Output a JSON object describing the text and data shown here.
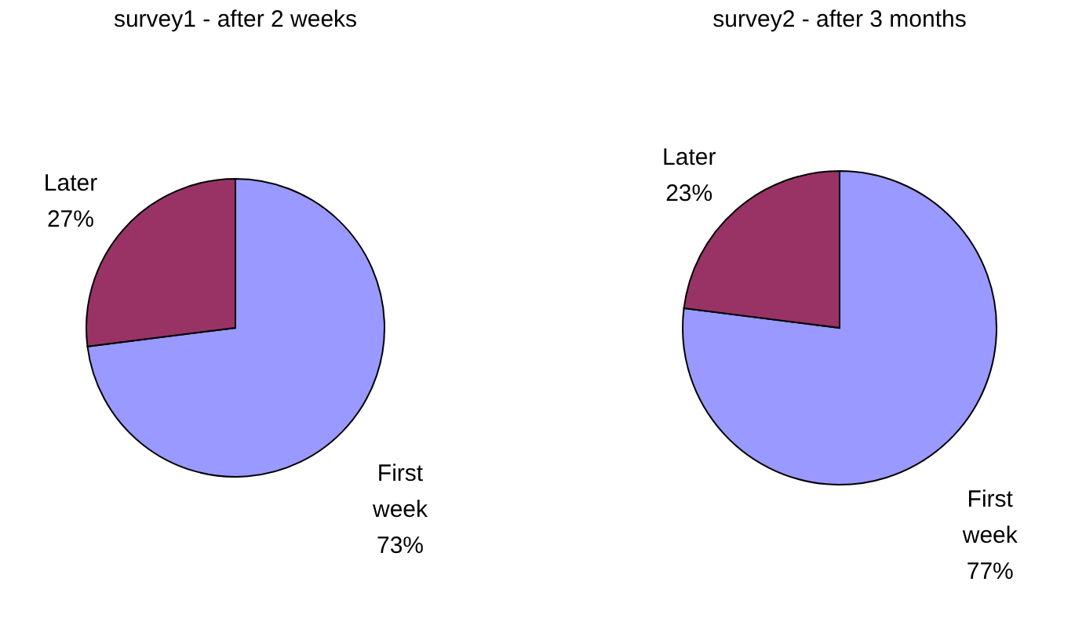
{
  "chart_data": [
    {
      "type": "pie",
      "title": "survey1 - after 2 weeks",
      "categories": [
        "First week",
        "Later"
      ],
      "values": [
        73,
        27
      ],
      "colors": [
        "#9999ff",
        "#993366"
      ],
      "value_labels": [
        "73%",
        "27%"
      ],
      "legend": false
    },
    {
      "type": "pie",
      "title": "survey2 - after 3 months",
      "categories": [
        "First week",
        "Later"
      ],
      "values": [
        77,
        23
      ],
      "colors": [
        "#9999ff",
        "#993366"
      ],
      "value_labels": [
        "77%",
        "23%"
      ],
      "legend": false
    }
  ]
}
